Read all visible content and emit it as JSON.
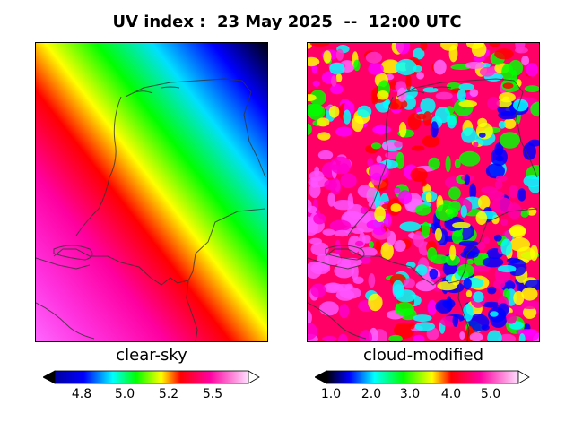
{
  "title": "UV index :  23 May 2025  --  12:00 UTC",
  "panels": [
    {
      "label": "clear-sky",
      "colorbar": {
        "ticks": [
          "4.8",
          "5.0",
          "5.2",
          "5.5"
        ],
        "min": 4.65,
        "max": 5.72,
        "extend": "both"
      }
    },
    {
      "label": "cloud-modified",
      "colorbar": {
        "ticks": [
          "1.0",
          "2.0",
          "3.0",
          "4.0",
          "5.0"
        ],
        "min": 0.6,
        "max": 5.95,
        "extend": "both"
      }
    }
  ],
  "colormap": [
    "#000000",
    "#0000ff",
    "#00ffff",
    "#00ff00",
    "#ffff00",
    "#ff0000",
    "#ff00a0",
    "#ff66ff",
    "#ffffff"
  ],
  "outline_color": "#333333"
}
